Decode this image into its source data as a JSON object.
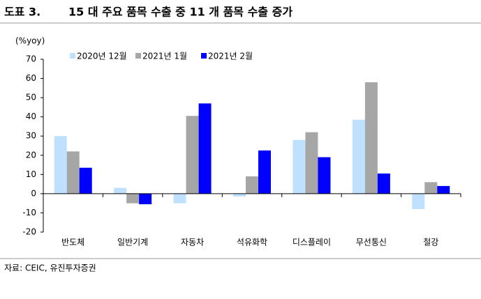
{
  "chart_data": {
    "type": "bar",
    "label": "도표 3.",
    "title": "15 대 주요 품목 수출 중 11 개 품목 수출 증가",
    "y_unit": "(%yoy)",
    "categories": [
      "반도체",
      "일반기계",
      "자동차",
      "석유화학",
      "디스플레이",
      "무선통신",
      "철강"
    ],
    "series": [
      {
        "name": "2020년 12월",
        "color": "#bfe0ff",
        "values": [
          30,
          3,
          -5,
          -1.5,
          28,
          38.5,
          -8
        ]
      },
      {
        "name": "2021년 1월",
        "color": "#a6a6a6",
        "values": [
          22,
          -5,
          40.5,
          9,
          32,
          58,
          6
        ]
      },
      {
        "name": "2021년 2월",
        "color": "#0000ff",
        "values": [
          13.5,
          -5.5,
          47,
          22.5,
          19,
          10.5,
          4
        ]
      }
    ],
    "ylim": [
      -20,
      70
    ],
    "yticks": [
      -20,
      -10,
      0,
      10,
      20,
      30,
      40,
      50,
      60,
      70
    ],
    "source": "자료: CEIC, 유진투자증권"
  }
}
